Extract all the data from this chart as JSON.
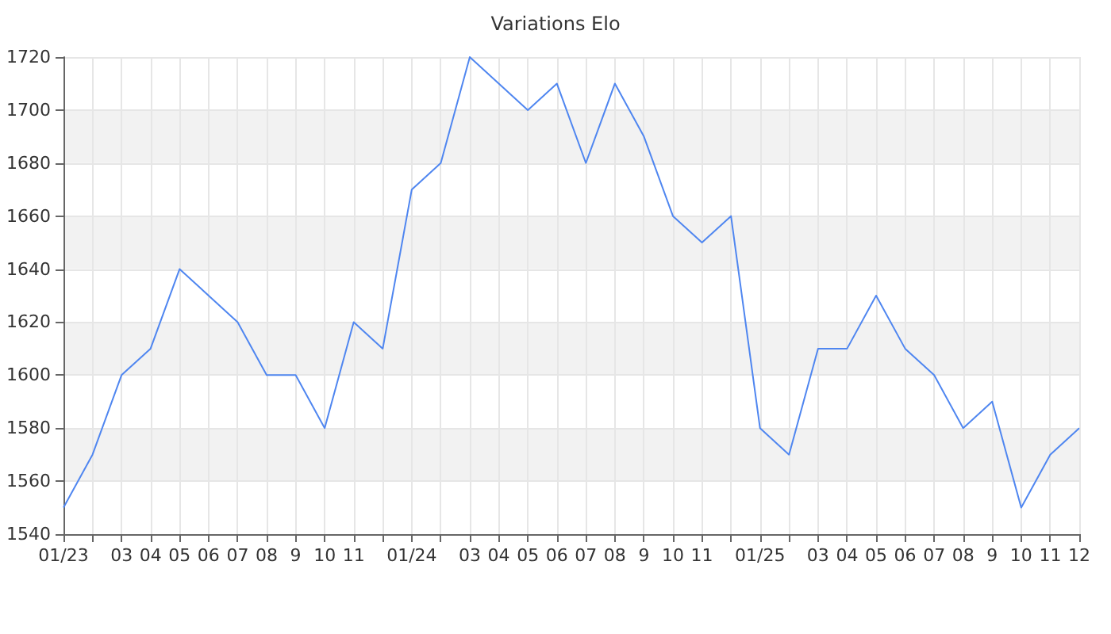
{
  "chart_data": {
    "type": "line",
    "title": "Variations Elo",
    "categories": [
      "01/23",
      null,
      "03",
      "04",
      "05",
      "06",
      "07",
      "08",
      "9",
      "10",
      "11",
      null,
      "01/24",
      null,
      "03",
      "04",
      "05",
      "06",
      "07",
      "08",
      "9",
      "10",
      "11",
      null,
      "01/25",
      null,
      "03",
      "04",
      "05",
      "06",
      "07",
      "08",
      "9",
      "10",
      "11",
      "12"
    ],
    "series": [
      {
        "color": "#4f86f0",
        "values": [
          1550,
          1570,
          1600,
          1610,
          1640,
          1630,
          1620,
          1600,
          1600,
          1580,
          1620,
          1610,
          1670,
          1680,
          1720,
          1710,
          1700,
          1710,
          1680,
          1710,
          1690,
          1660,
          1650,
          1660,
          1580,
          1570,
          1610,
          1610,
          1630,
          1610,
          1600,
          1580,
          1590,
          1550,
          1570,
          1580
        ]
      }
    ],
    "ylim": [
      1540,
      1720
    ],
    "yticks": [
      1540,
      1560,
      1580,
      1600,
      1620,
      1640,
      1660,
      1680,
      1700,
      1720
    ],
    "grid": true,
    "marker": "none",
    "line_style": "solid"
  }
}
